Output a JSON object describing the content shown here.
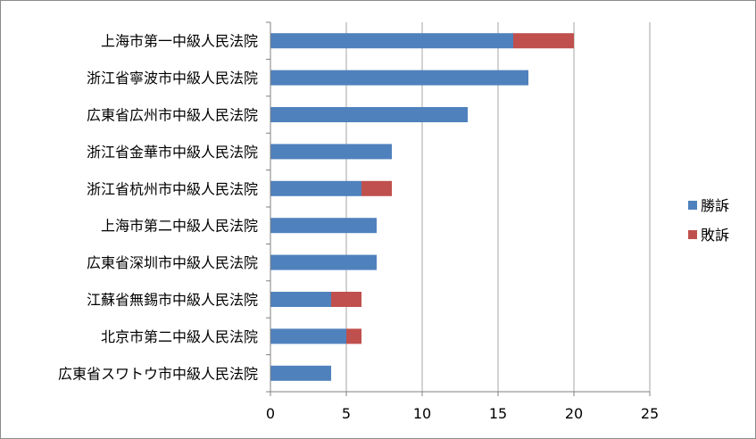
{
  "chart_data": {
    "type": "bar",
    "orientation": "horizontal",
    "stacked": true,
    "categories": [
      "上海市第一中級人民法院",
      "浙江省寧波市中級人民法院",
      "広東省広州市中級人民法院",
      "浙江省金華市中級人民法院",
      "浙江省杭州市中級人民法院",
      "上海市第二中級人民法院",
      "広東省深圳市中級人民法院",
      "江蘇省無錫市中級人民法院",
      "北京市第二中級人民法院",
      "広東省スワトウ市中級人民法院"
    ],
    "series": [
      {
        "name": "勝訴",
        "color": "#4f81bd",
        "values": [
          16,
          17,
          13,
          8,
          6,
          7,
          7,
          4,
          5,
          4
        ]
      },
      {
        "name": "敗訴",
        "color": "#c0504d",
        "values": [
          4,
          0,
          0,
          0,
          2,
          0,
          0,
          2,
          1,
          0
        ]
      }
    ],
    "xlim": [
      0,
      25
    ],
    "xticks": [
      0,
      5,
      10,
      15,
      20,
      25
    ],
    "grid": "vertical",
    "legend_position": "right"
  }
}
